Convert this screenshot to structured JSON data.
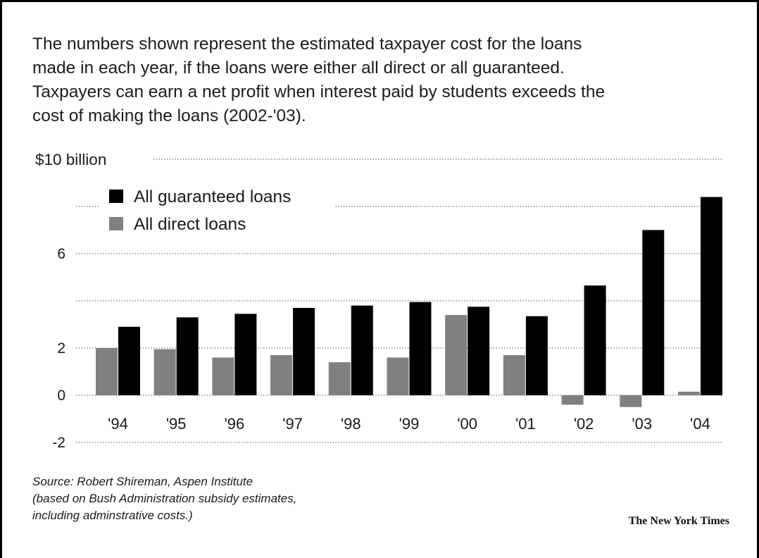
{
  "intro": [
    "The numbers shown represent the estimated taxpayer cost for the loans",
    "made in each year, if the loans were either all direct or all guaranteed.",
    "Taxpayers can earn a net profit when interest paid by students exceeds the",
    "cost of making the loans (2002-'03)."
  ],
  "source": [
    "Source: Robert Shireman, Aspen Institute",
    "(based on Bush Administration subsidy estimates,",
    "including adminstrative costs.)"
  ],
  "credit": "The New York Times",
  "colors": {
    "guaranteed": "#000000",
    "direct": "#808080",
    "grid": "#555555"
  },
  "chart_data": {
    "type": "bar",
    "categories": [
      "'94",
      "'95",
      "'96",
      "'97",
      "'98",
      "'99",
      "'00",
      "'01",
      "'02",
      "'03",
      "'04"
    ],
    "series": [
      {
        "name": "All direct loans",
        "color": "#808080",
        "values": [
          2.0,
          1.95,
          1.6,
          1.7,
          1.4,
          1.6,
          3.4,
          1.7,
          -0.4,
          -0.5,
          0.15
        ]
      },
      {
        "name": "All guaranteed loans",
        "color": "#000000",
        "values": [
          2.9,
          3.3,
          3.45,
          3.7,
          3.8,
          3.95,
          3.75,
          3.35,
          4.65,
          7.0,
          8.4
        ]
      }
    ],
    "yticks": [
      -2,
      0,
      2,
      6
    ],
    "ytick_labels": [
      "-2",
      "0",
      "2",
      "6"
    ],
    "top_label": "$10 billion",
    "gridlines": [
      -2,
      0,
      2,
      4,
      6,
      8,
      10
    ],
    "ylim": [
      -2,
      10
    ],
    "grid": true,
    "legend": "top-left"
  }
}
